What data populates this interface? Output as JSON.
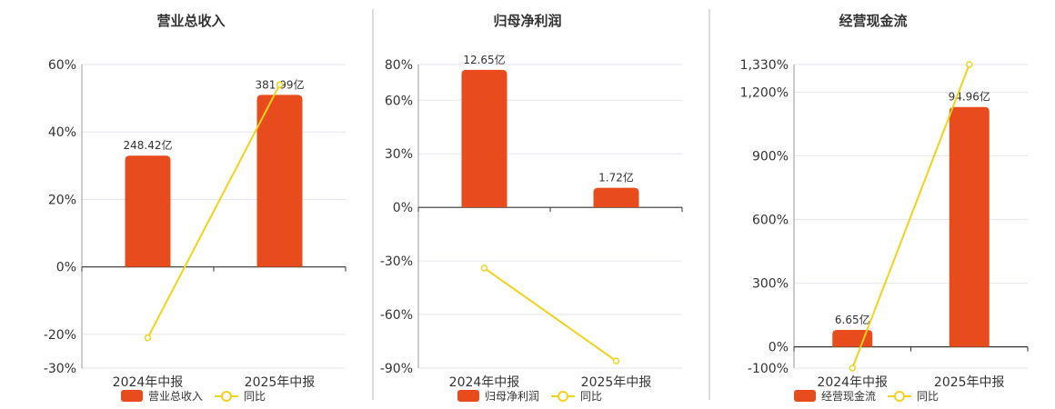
{
  "colors": {
    "bar": "#E84B1C",
    "line": "#F2D21B",
    "grid": "#E6E6EE",
    "axis": "#333333",
    "divider": "#BBBBBB"
  },
  "chart_data": [
    {
      "type": "bar",
      "title": "营业总收入",
      "categories": [
        "2024年中报",
        "2025年中报"
      ],
      "ylim": [
        -30,
        60
      ],
      "yticks": [
        -30,
        -20,
        0,
        20,
        40,
        60
      ],
      "ytick_labels": [
        "-30%",
        "-20%",
        "0%",
        "20%",
        "40%",
        "60%"
      ],
      "series": [
        {
          "name": "营业总收入",
          "kind": "bar",
          "values": [
            33,
            51
          ],
          "labels": [
            "248.42亿",
            "381.99亿"
          ]
        },
        {
          "name": "同比",
          "kind": "line",
          "values": [
            -21,
            54
          ]
        }
      ],
      "legend": "bottom"
    },
    {
      "type": "bar",
      "title": "归母净利润",
      "categories": [
        "2024年中报",
        "2025年中报"
      ],
      "ylim": [
        -90,
        80
      ],
      "yticks": [
        -90,
        -60,
        -30,
        0,
        30,
        60,
        80
      ],
      "ytick_labels": [
        "-90%",
        "-60%",
        "-30%",
        "0%",
        "30%",
        "60%",
        "80%"
      ],
      "series": [
        {
          "name": "归母净利润",
          "kind": "bar",
          "values": [
            77,
            11
          ],
          "labels": [
            "12.65亿",
            "1.72亿"
          ]
        },
        {
          "name": "同比",
          "kind": "line",
          "values": [
            -34,
            -86
          ]
        }
      ],
      "legend": "bottom"
    },
    {
      "type": "bar",
      "title": "经营现金流",
      "categories": [
        "2024年中报",
        "2025年中报"
      ],
      "ylim": [
        -100,
        1330
      ],
      "yticks": [
        -100,
        0,
        300,
        600,
        900,
        1200,
        1330
      ],
      "ytick_labels": [
        "-100%",
        "0%",
        "300%",
        "600%",
        "900%",
        "1,200%",
        "1,330%"
      ],
      "series": [
        {
          "name": "经营现金流",
          "kind": "bar",
          "values": [
            80,
            1130
          ],
          "labels": [
            "6.65亿",
            "94.96亿"
          ]
        },
        {
          "name": "同比",
          "kind": "line",
          "values": [
            -100,
            1330
          ]
        }
      ],
      "legend": "bottom"
    }
  ]
}
